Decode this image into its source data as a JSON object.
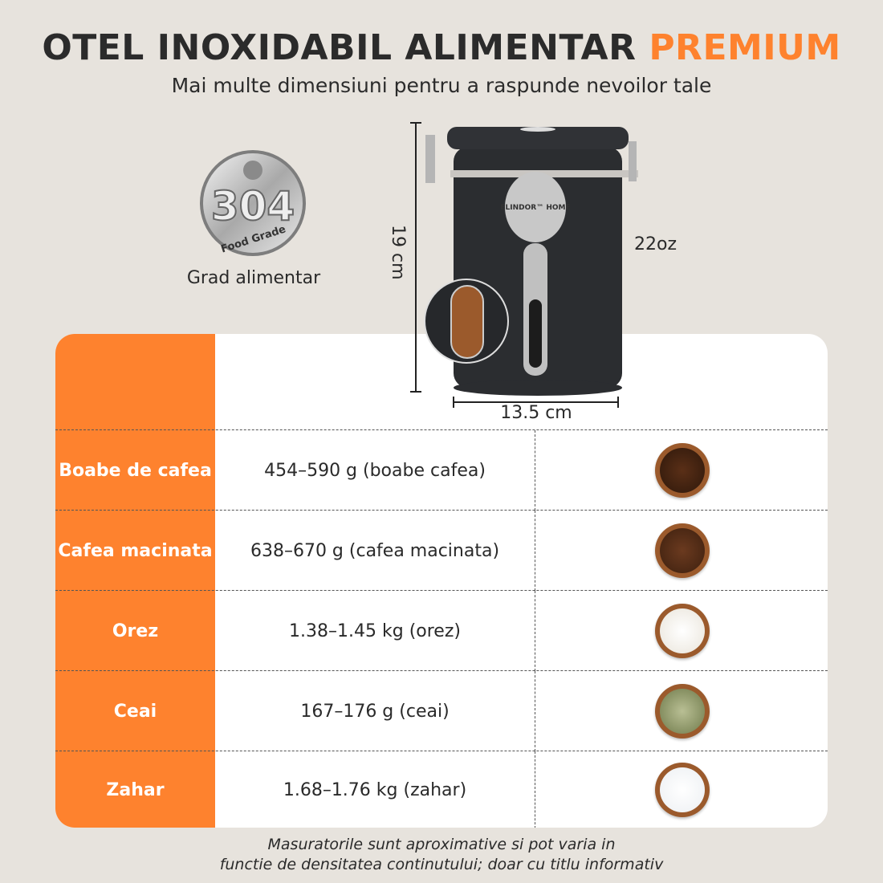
{
  "header": {
    "title": "OTEL INOXIDABIL ALIMENTAR",
    "title_accent": "PREMIUM",
    "subtitle": "Mai multe dimensiuni pentru a raspunde nevoilor tale"
  },
  "badge": {
    "number": "304",
    "text": "Food Grade",
    "label": "Grad alimentar"
  },
  "product": {
    "brand": "ELINDOR™ HOME",
    "height": "19 cm",
    "width": "13.5 cm",
    "capacity": "22oz"
  },
  "colors": {
    "accent": "#fe822e",
    "background": "#e7e3dd",
    "canister": "#2b2d30"
  },
  "table": {
    "rows": [
      {
        "label": "Boabe de cafea",
        "value": "454–590 g (boabe cafea)",
        "image": "coffee-beans"
      },
      {
        "label": "Cafea macinata",
        "value": "638–670 g (cafea macinata)",
        "image": "ground-coffee"
      },
      {
        "label": "Orez",
        "value": "1.38–1.45 kg (orez)",
        "image": "rice"
      },
      {
        "label": "Ceai",
        "value": "167–176 g (ceai)",
        "image": "tea-leaves"
      },
      {
        "label": "Zahar",
        "value": "1.68–1.76 kg (zahar)",
        "image": "sugar"
      }
    ]
  },
  "footnote": {
    "line1": "Masuratorile sunt aproximative si pot varia in",
    "line2": "functie de densitatea continutului; doar cu titlu informativ"
  }
}
